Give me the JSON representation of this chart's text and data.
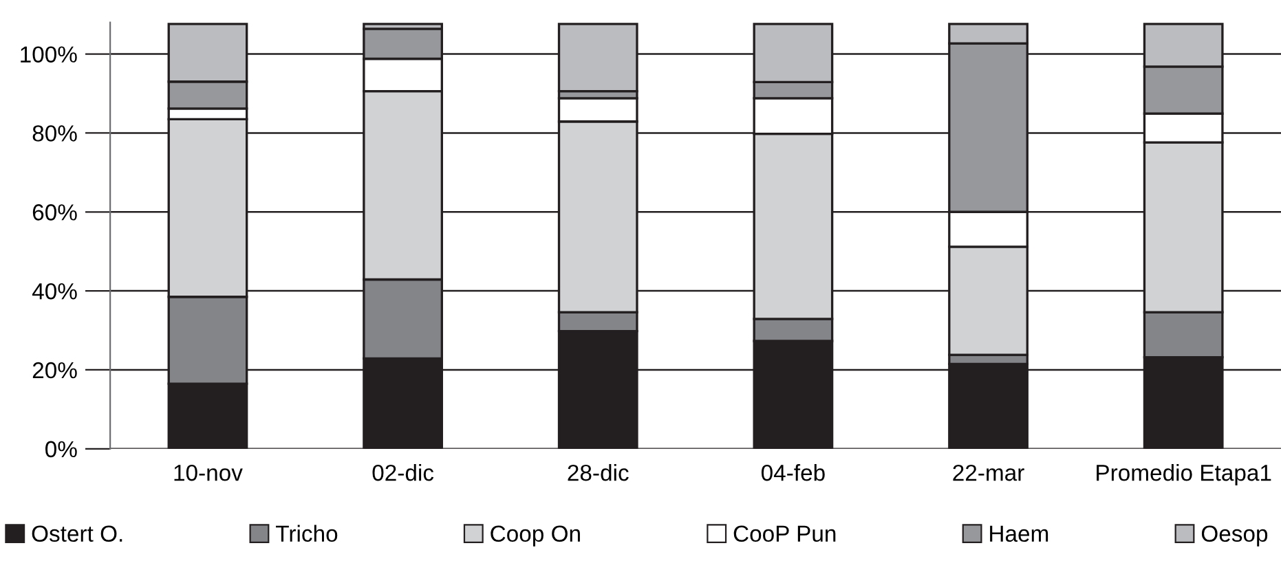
{
  "chart_data": {
    "type": "bar",
    "stacked": true,
    "categories": [
      "10-nov",
      "02-dic",
      "28-dic",
      "04-feb",
      "22-mar",
      "Promedio Etapa1"
    ],
    "series": [
      {
        "name": "Ostert O.",
        "color": "#231f20",
        "values": [
          16.5,
          22.9,
          29.8,
          27.3,
          21.5,
          23.2
        ]
      },
      {
        "name": "Tricho",
        "color": "#848588",
        "values": [
          22,
          20,
          4.8,
          5.6,
          2.3,
          11.4
        ]
      },
      {
        "name": "Coop On",
        "color": "#d1d2d4",
        "values": [
          45,
          47.7,
          48.3,
          46.9,
          27.4,
          43
        ]
      },
      {
        "name": "CooP Pun",
        "color": "#ffffff",
        "values": [
          2.7,
          8.2,
          5.9,
          9,
          8.8,
          7.3
        ]
      },
      {
        "name": "Haem",
        "color": "#97989b",
        "values": [
          6.8,
          7.6,
          1.8,
          4.1,
          42.7,
          11.9
        ]
      },
      {
        "name": "Oesop",
        "color": "#bbbcbf",
        "values": [
          14.6,
          1.2,
          17,
          14.7,
          4.9,
          10.8
        ]
      }
    ],
    "ylim": [
      0,
      108
    ],
    "yticks": [
      {
        "value": 0,
        "label": "0%"
      },
      {
        "value": 20,
        "label": "20%"
      },
      {
        "value": 40,
        "label": "40%"
      },
      {
        "value": 60,
        "label": "60%"
      },
      {
        "value": 80,
        "label": "80%"
      },
      {
        "value": 100,
        "label": "100%"
      }
    ],
    "grid": "y",
    "legend": "bottom"
  }
}
